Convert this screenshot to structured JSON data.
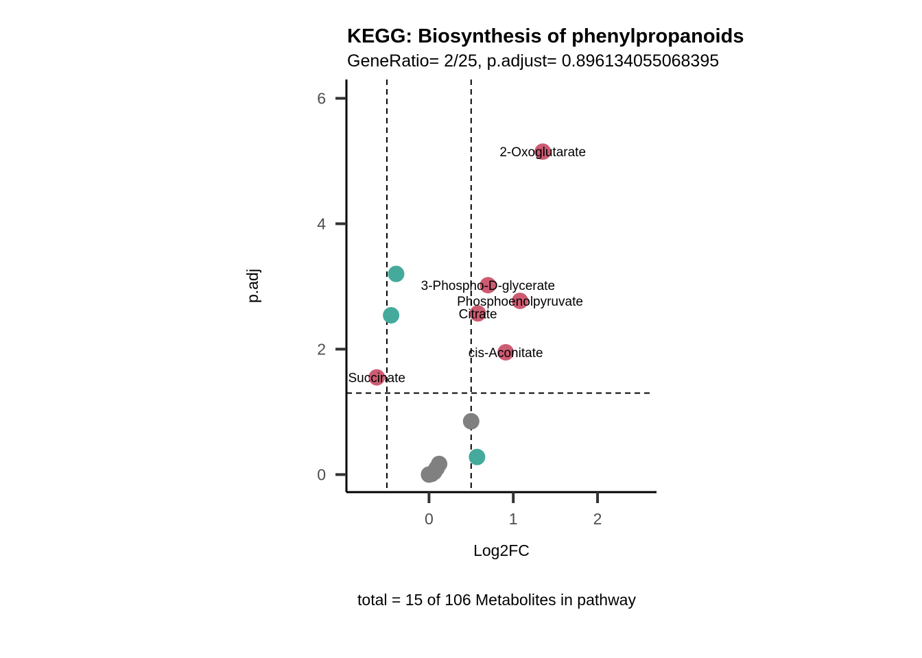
{
  "chart_data": {
    "type": "scatter",
    "title": "KEGG: Biosynthesis of phenylpropanoids",
    "subtitle": "GeneRatio= 2/25, p.adjust= 0.896134055068395",
    "xlabel": "Log2FC",
    "ylabel": "p.adj",
    "caption": "total = 15 of 106 Metabolites in pathway",
    "xlim": [
      -0.98,
      2.7
    ],
    "ylim": [
      -0.28,
      6.3
    ],
    "xticks": [
      0,
      1,
      2
    ],
    "yticks": [
      0,
      2,
      4,
      6
    ],
    "grid": false,
    "legend": "none",
    "thresholds": {
      "x": [
        -0.5,
        0.5
      ],
      "y": [
        1.3
      ]
    },
    "colors": {
      "up": "#cd5c72",
      "down": "#45aa9b",
      "ns": "#808080"
    },
    "points": [
      {
        "x": 1.35,
        "y": 5.15,
        "group": "up",
        "label": "2-Oxoglutarate"
      },
      {
        "x": 0.7,
        "y": 3.02,
        "group": "up",
        "label": "3-Phospho-D-glycerate"
      },
      {
        "x": 1.08,
        "y": 2.77,
        "group": "up",
        "label": "Phosphoenolpyruvate"
      },
      {
        "x": 0.58,
        "y": 2.57,
        "group": "up",
        "label": "Citrate"
      },
      {
        "x": 0.91,
        "y": 1.95,
        "group": "up",
        "label": "cis-Aconitate"
      },
      {
        "x": -0.62,
        "y": 1.55,
        "group": "up",
        "label": "Succinate"
      },
      {
        "x": -0.39,
        "y": 3.2,
        "group": "down"
      },
      {
        "x": -0.45,
        "y": 2.54,
        "group": "down"
      },
      {
        "x": 0.57,
        "y": 0.28,
        "group": "down"
      },
      {
        "x": 0.5,
        "y": 0.85,
        "group": "ns"
      },
      {
        "x": 0.12,
        "y": 0.17,
        "group": "ns"
      },
      {
        "x": 0.09,
        "y": 0.1,
        "group": "ns"
      },
      {
        "x": 0.06,
        "y": 0.04,
        "group": "ns"
      },
      {
        "x": 0.03,
        "y": 0.01,
        "group": "ns"
      },
      {
        "x": 0.0,
        "y": 0.0,
        "group": "ns"
      }
    ]
  }
}
